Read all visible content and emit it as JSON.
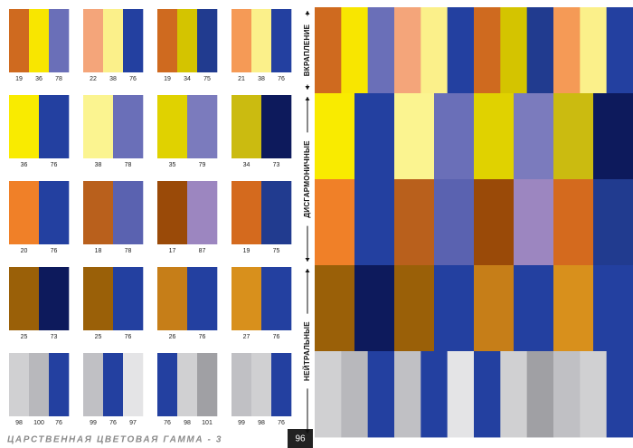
{
  "footer": {
    "title": "ЦАРСТВЕННАЯ ЦВЕТОВАЯ ГАММА - 3",
    "page": 96
  },
  "sections": [
    {
      "label": "ВКРАПЛЕНИЕ"
    },
    {
      "label": "ДИСГАРМОНИЧНЫЕ"
    },
    {
      "label": "НЕЙТРАЛЬНЫЕ"
    }
  ],
  "rows": [
    {
      "groups": [
        {
          "swatches": [
            {
              "color": "#cf6a1f",
              "label": 19
            },
            {
              "color": "#f8e600",
              "label": 36
            },
            {
              "color": "#6a6fb8",
              "label": 78
            }
          ]
        },
        {
          "swatches": [
            {
              "color": "#f4a57a",
              "label": 22
            },
            {
              "color": "#fbf08a",
              "label": 38
            },
            {
              "color": "#2340a0",
              "label": 76
            }
          ]
        },
        {
          "swatches": [
            {
              "color": "#cf6a1f",
              "label": 19
            },
            {
              "color": "#d4c400",
              "label": 34
            },
            {
              "color": "#213b8f",
              "label": 75
            }
          ]
        },
        {
          "swatches": [
            {
              "color": "#f59a56",
              "label": 21
            },
            {
              "color": "#fbf08a",
              "label": 38
            },
            {
              "color": "#2340a0",
              "label": 76
            }
          ]
        }
      ]
    },
    {
      "groups": [
        {
          "swatches": [
            {
              "color": "#f9eb00",
              "label": 36
            },
            {
              "color": "#2340a0",
              "label": 76
            }
          ]
        },
        {
          "swatches": [
            {
              "color": "#fbf490",
              "label": 38
            },
            {
              "color": "#6a6fb8",
              "label": 78
            }
          ]
        },
        {
          "swatches": [
            {
              "color": "#e0d200",
              "label": 35
            },
            {
              "color": "#7b7bbd",
              "label": 79
            }
          ]
        },
        {
          "swatches": [
            {
              "color": "#cbbb10",
              "label": 34
            },
            {
              "color": "#0d1a5c",
              "label": 73
            }
          ]
        }
      ]
    },
    {
      "groups": [
        {
          "swatches": [
            {
              "color": "#f08028",
              "label": 20
            },
            {
              "color": "#2340a0",
              "label": 76
            }
          ]
        },
        {
          "swatches": [
            {
              "color": "#b9601c",
              "label": 18
            },
            {
              "color": "#5a62b0",
              "label": 78
            }
          ]
        },
        {
          "swatches": [
            {
              "color": "#9a4a08",
              "label": 17
            },
            {
              "color": "#9c86c0",
              "label": 87
            }
          ]
        },
        {
          "swatches": [
            {
              "color": "#d46a1e",
              "label": 19
            },
            {
              "color": "#213b8f",
              "label": 75
            }
          ]
        }
      ]
    },
    {
      "groups": [
        {
          "swatches": [
            {
              "color": "#9a6008",
              "label": 25
            },
            {
              "color": "#0d1a5c",
              "label": 73
            }
          ]
        },
        {
          "swatches": [
            {
              "color": "#9a6008",
              "label": 25
            },
            {
              "color": "#2340a0",
              "label": 76
            }
          ]
        },
        {
          "swatches": [
            {
              "color": "#c67e18",
              "label": 26
            },
            {
              "color": "#2340a0",
              "label": 76
            }
          ]
        },
        {
          "swatches": [
            {
              "color": "#d8901c",
              "label": 27
            },
            {
              "color": "#2340a0",
              "label": 76
            }
          ]
        }
      ]
    },
    {
      "groups": [
        {
          "swatches": [
            {
              "color": "#d0d0d2",
              "label": 98
            },
            {
              "color": "#b8b8bc",
              "label": 100
            },
            {
              "color": "#2340a0",
              "label": 76
            }
          ]
        },
        {
          "swatches": [
            {
              "color": "#c0c0c4",
              "label": 99
            },
            {
              "color": "#2340a0",
              "label": 76
            },
            {
              "color": "#e4e4e6",
              "label": 97
            }
          ]
        },
        {
          "swatches": [
            {
              "color": "#2340a0",
              "label": 76
            },
            {
              "color": "#d0d0d2",
              "label": 98
            },
            {
              "color": "#a0a0a4",
              "label": 101
            }
          ]
        },
        {
          "swatches": [
            {
              "color": "#c0c0c4",
              "label": 99
            },
            {
              "color": "#d0d0d2",
              "label": 98
            },
            {
              "color": "#2340a0",
              "label": 76
            }
          ]
        }
      ]
    }
  ]
}
